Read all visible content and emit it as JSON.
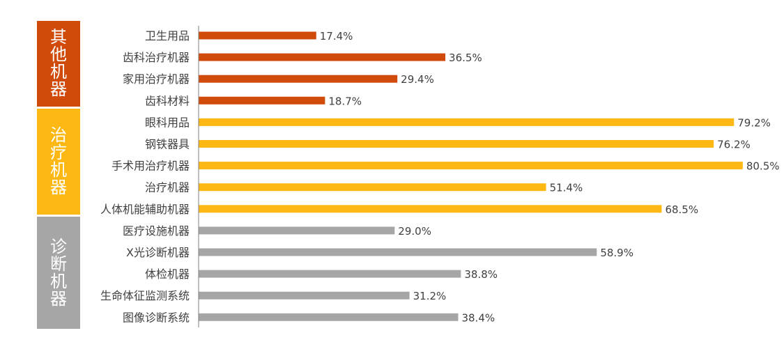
{
  "chart_data": {
    "type": "bar",
    "orientation": "horizontal",
    "xlim": [
      0,
      85
    ],
    "grid": false,
    "groups": [
      {
        "label": "其他机器",
        "color": "#D04B0A",
        "categories": [
          "卫生用品",
          "齿科治疗机器",
          "家用治疗机器",
          "齿科材料"
        ],
        "values": [
          17.4,
          36.5,
          29.4,
          18.7
        ],
        "value_labels": [
          "17.4%",
          "36.5%",
          "29.4%",
          "18.7%"
        ]
      },
      {
        "label": "治疗机器",
        "color": "#FDB813",
        "categories": [
          "眼科用品",
          "钢铁器具",
          "手术用治疗机器",
          "治疗机器",
          "人体机能辅助机器"
        ],
        "values": [
          79.2,
          76.2,
          80.5,
          51.4,
          68.5
        ],
        "value_labels": [
          "79.2%",
          "76.2%",
          "80.5%",
          "51.4%",
          "68.5%"
        ]
      },
      {
        "label": "诊断机器",
        "color": "#A6A6A6",
        "categories": [
          "医疗设施机器",
          "X光诊断机器",
          "体检机器",
          "生命体征监测系统",
          "图像诊断系统"
        ],
        "values": [
          29.0,
          58.9,
          38.8,
          31.2,
          38.4
        ],
        "value_labels": [
          "29.0%",
          "58.9%",
          "38.8%",
          "31.2%",
          "38.4%"
        ]
      }
    ]
  }
}
